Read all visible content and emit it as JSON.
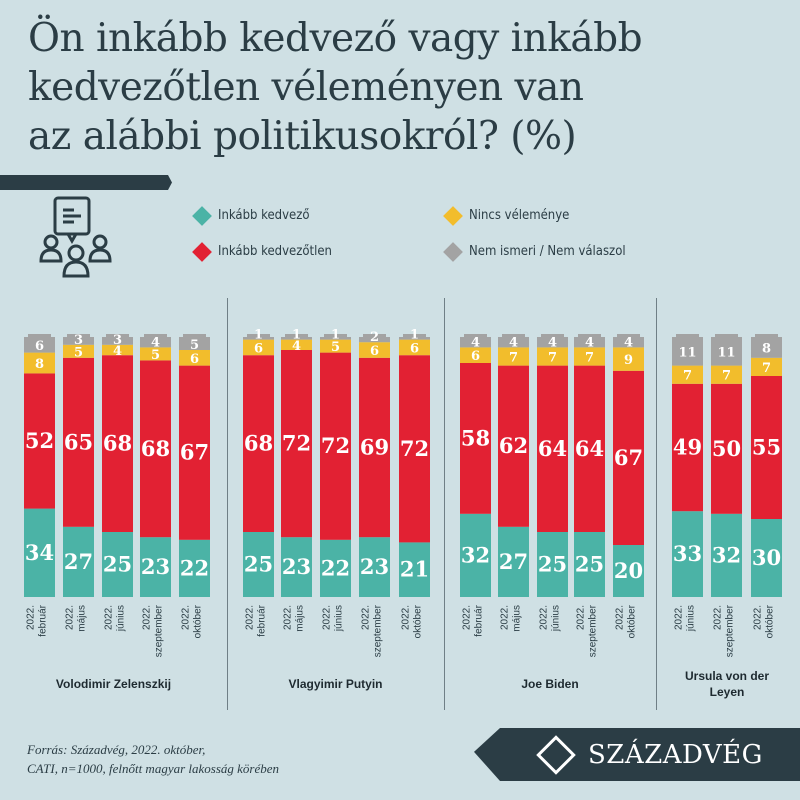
{
  "title": [
    "Ön inkább kedvező vagy inkább",
    "kedvezőtlen véleményen van",
    "az alábbi politikusokról? (%)"
  ],
  "legend": [
    {
      "label": "Inkább kedvező",
      "color": "#4bb3a6"
    },
    {
      "label": "Inkább kedvezőtlen",
      "color": "#e22133"
    },
    {
      "label": "Nincs véleménye",
      "color": "#f2bd2c"
    },
    {
      "label": "Nem ismeri / Nem válaszol",
      "color": "#a3a3a3"
    }
  ],
  "icon": "group-discussion-icon",
  "chart_data": {
    "type": "bar",
    "stacked": true,
    "unit": "%",
    "series_names": [
      "Inkább kedvező",
      "Inkább kedvezőtlen",
      "Nincs véleménye",
      "Nem ismeri / Nem válaszol"
    ],
    "groups": [
      {
        "name": "Volodimir Zelenszkij",
        "categories": [
          [
            "2022.",
            "február"
          ],
          [
            "2022.",
            "május"
          ],
          [
            "2022.",
            "június"
          ],
          [
            "2022.",
            "szeptember"
          ],
          [
            "2022.",
            "október"
          ]
        ],
        "values": [
          [
            34,
            52,
            8,
            6
          ],
          [
            27,
            65,
            5,
            3
          ],
          [
            25,
            68,
            4,
            3
          ],
          [
            23,
            68,
            5,
            4
          ],
          [
            22,
            67,
            6,
            5
          ]
        ]
      },
      {
        "name": "Vlagyimir Putyin",
        "categories": [
          [
            "2022.",
            "február"
          ],
          [
            "2022.",
            "május"
          ],
          [
            "2022.",
            "június"
          ],
          [
            "2022.",
            "szeptember"
          ],
          [
            "2022.",
            "október"
          ]
        ],
        "values": [
          [
            25,
            68,
            6,
            1
          ],
          [
            23,
            72,
            4,
            1
          ],
          [
            22,
            72,
            5,
            1
          ],
          [
            23,
            69,
            6,
            2
          ],
          [
            21,
            72,
            6,
            1
          ]
        ]
      },
      {
        "name": "Joe Biden",
        "categories": [
          [
            "2022.",
            "február"
          ],
          [
            "2022.",
            "május"
          ],
          [
            "2022.",
            "június"
          ],
          [
            "2022.",
            "szeptember"
          ],
          [
            "2022.",
            "október"
          ]
        ],
        "values": [
          [
            32,
            58,
            6,
            4
          ],
          [
            27,
            62,
            7,
            4
          ],
          [
            25,
            64,
            7,
            4
          ],
          [
            25,
            64,
            7,
            4
          ],
          [
            20,
            67,
            9,
            4
          ]
        ]
      },
      {
        "name": "Ursula von der Leyen",
        "categories": [
          [
            "2022.",
            "június"
          ],
          [
            "2022.",
            "szeptember"
          ],
          [
            "2022.",
            "október"
          ]
        ],
        "values": [
          [
            33,
            49,
            7,
            11
          ],
          [
            32,
            50,
            7,
            11
          ],
          [
            30,
            55,
            7,
            8
          ]
        ]
      }
    ]
  },
  "source": [
    "Forrás: Századvég, 2022. október,",
    "CATI, n=1000, felnőtt magyar lakosság körében"
  ],
  "logo_text": "SZÁZADVÉG"
}
